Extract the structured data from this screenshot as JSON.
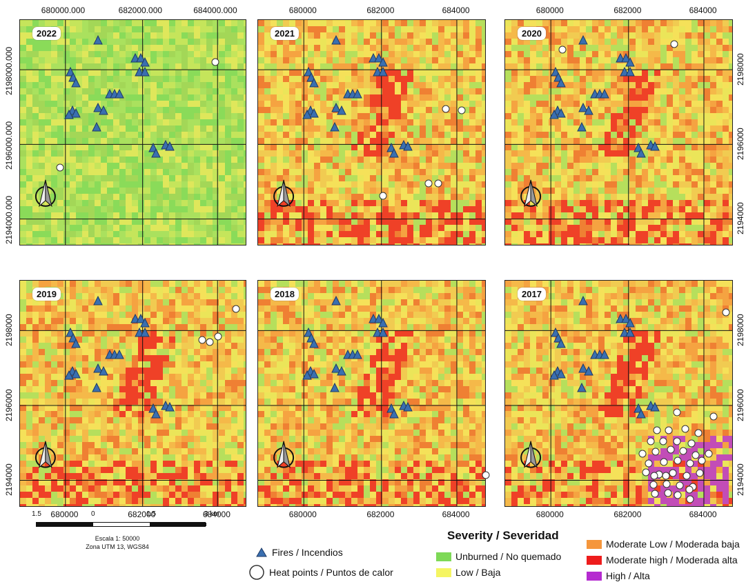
{
  "maps": [
    {
      "year": "2022",
      "base": "green",
      "top_labels": [
        "680000.000",
        "682000.000",
        "684000.000"
      ],
      "bottom_labels": [],
      "left_labels": [
        "2198000.000",
        "2196000.000",
        "2194000.000"
      ],
      "right_labels": [],
      "heat": [
        [
          312,
          90
        ],
        [
          87,
          243
        ]
      ]
    },
    {
      "year": "2021",
      "base": "mixed",
      "top_labels": [
        "680000",
        "682000",
        "684000"
      ],
      "bottom_labels": [],
      "left_labels": [],
      "right_labels": [],
      "heat": [
        [
          646,
          158
        ],
        [
          669,
          160
        ],
        [
          621,
          266
        ],
        [
          635,
          266
        ],
        [
          555,
          284
        ]
      ]
    },
    {
      "year": "2020",
      "base": "mixed",
      "top_labels": [
        "680000",
        "682000",
        "684000"
      ],
      "bottom_labels": [],
      "left_labels": [],
      "right_labels": [
        "2198000",
        "2196000",
        "2194000"
      ],
      "heat": [
        [
          815,
          72
        ],
        [
          977,
          64
        ]
      ]
    },
    {
      "year": "2019",
      "base": "mixed",
      "top_labels": [],
      "bottom_labels": [
        "680000",
        "682000",
        "684000"
      ],
      "left_labels": [
        "2198000",
        "2196000",
        "2194000"
      ],
      "right_labels": [],
      "heat": [
        [
          342,
          448
        ],
        [
          293,
          493
        ],
        [
          304,
          496
        ],
        [
          316,
          488
        ]
      ]
    },
    {
      "year": "2018",
      "base": "mixed",
      "top_labels": [],
      "bottom_labels": [
        "680000",
        "682000",
        "684000"
      ],
      "left_labels": [],
      "right_labels": [],
      "heat": [
        [
          704,
          689
        ]
      ]
    },
    {
      "year": "2017",
      "base": "mixed",
      "top_labels": [],
      "bottom_labels": [
        "680000",
        "682000",
        "684000"
      ],
      "left_labels": [],
      "right_labels": [
        "2198000",
        "2196000",
        "2194000"
      ],
      "heat": [
        [
          1052,
          453
        ],
        [
          981,
          598
        ],
        [
          1034,
          604
        ],
        [
          952,
          624
        ],
        [
          969,
          624
        ],
        [
          993,
          622
        ],
        [
          1012,
          628
        ],
        [
          943,
          640
        ],
        [
          961,
          640
        ],
        [
          981,
          640
        ],
        [
          1002,
          643
        ],
        [
          931,
          658
        ],
        [
          950,
          655
        ],
        [
          972,
          652
        ],
        [
          990,
          654
        ],
        [
          1008,
          660
        ],
        [
          1027,
          658
        ],
        [
          940,
          672
        ],
        [
          962,
          670
        ],
        [
          982,
          668
        ],
        [
          1000,
          672
        ],
        [
          1017,
          668
        ],
        [
          936,
          685
        ],
        [
          955,
          688
        ],
        [
          975,
          686
        ],
        [
          995,
          690
        ],
        [
          1014,
          686
        ],
        [
          947,
          703
        ],
        [
          966,
          702
        ],
        [
          985,
          704
        ],
        [
          1004,
          706
        ],
        [
          948,
          690
        ],
        [
          965,
          690
        ],
        [
          999,
          710
        ],
        [
          968,
          715
        ],
        [
          949,
          716
        ],
        [
          982,
          718
        ],
        [
          1000,
          724
        ]
      ]
    }
  ],
  "fires": [
    [
      142,
      58
    ],
    [
      196,
      84
    ],
    [
      204,
      84
    ],
    [
      210,
      90
    ],
    [
      202,
      104
    ],
    [
      210,
      104
    ],
    [
      102,
      104
    ],
    [
      106,
      112
    ],
    [
      110,
      120
    ],
    [
      105,
      160
    ],
    [
      110,
      164
    ],
    [
      100,
      166
    ],
    [
      142,
      156
    ],
    [
      150,
      160
    ],
    [
      140,
      184
    ],
    [
      159,
      136
    ],
    [
      166,
      136
    ],
    [
      173,
      136
    ],
    [
      222,
      214
    ],
    [
      226,
      222
    ],
    [
      240,
      210
    ],
    [
      246,
      212
    ]
  ],
  "scale": {
    "labels": [
      "1.5",
      "0",
      "1.5",
      "3 km"
    ],
    "line1": "Escala 1: 50000",
    "line2": "Zona UTM 13, WGS84"
  },
  "legend": {
    "fires": "Fires / Incendios",
    "heat": "Heat points / Puntos de calor",
    "severity_title": "Severity / Severidad",
    "classes": [
      {
        "label": "Unburned / No quemado",
        "color": "#7ed957"
      },
      {
        "label": "Low / Baja",
        "color": "#f5f562"
      },
      {
        "label": "Moderate Low / Moderada baja",
        "color": "#f5963c"
      },
      {
        "label": "Moderate high / Moderada alta",
        "color": "#ee1c1c"
      },
      {
        "label": "High / Alta",
        "color": "#b52bd0"
      }
    ]
  },
  "colors": {
    "fire": "#3a6fb0",
    "grid": "#111111"
  }
}
